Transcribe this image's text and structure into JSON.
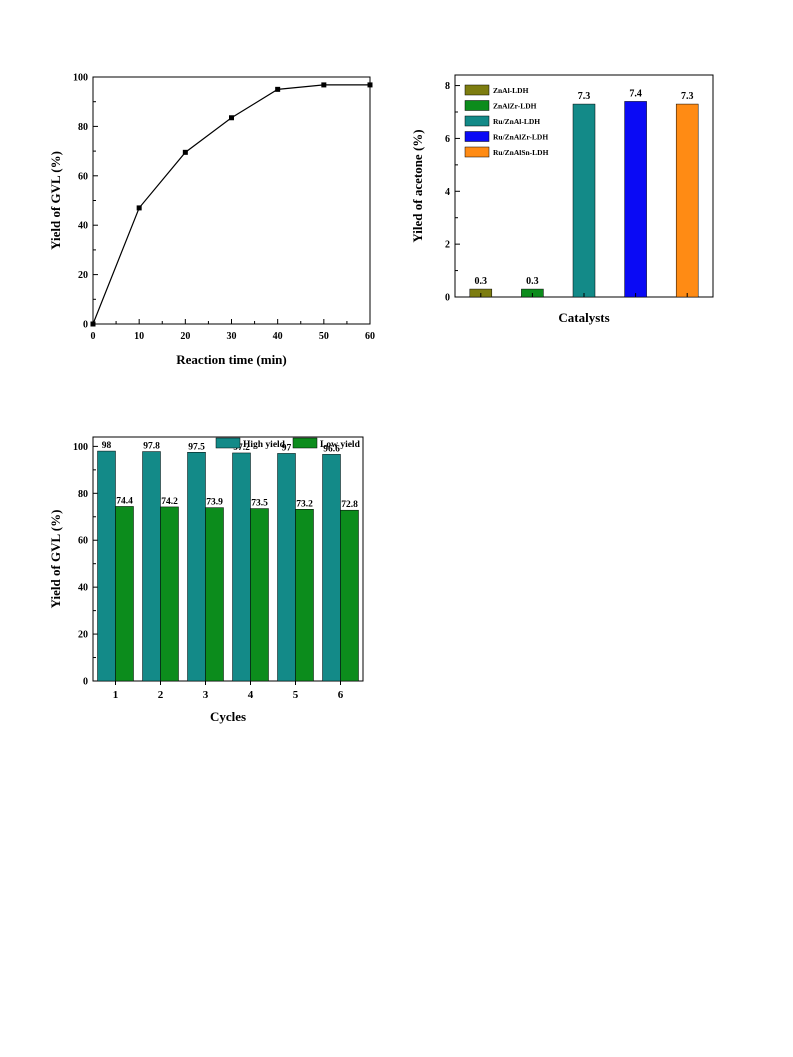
{
  "chart_data": [
    {
      "type": "line",
      "title": "",
      "xlabel": "Reaction time (min)",
      "ylabel": "Yield of GVL (%)",
      "xlim": [
        0,
        60
      ],
      "ylim": [
        0,
        100
      ],
      "xticks": [
        0,
        10,
        20,
        30,
        40,
        50,
        60
      ],
      "yticks": [
        0,
        20,
        40,
        60,
        80,
        100
      ],
      "grid": false,
      "series": [
        {
          "x": [
            0,
            10,
            20,
            30,
            40,
            50,
            60
          ],
          "y": [
            0,
            47,
            69.5,
            83.5,
            95,
            96.8,
            96.8
          ],
          "color": "#000000",
          "marker": "square"
        }
      ]
    },
    {
      "type": "bar",
      "title": "",
      "xlabel": "Catalysts",
      "ylabel": "Yiled of acetone (%)",
      "ylim": [
        0,
        8.4
      ],
      "yticks": [
        0,
        2,
        4,
        6,
        8
      ],
      "grid": false,
      "legend_position": "top-left",
      "categories": [
        "ZnAl-LDH",
        "ZnAlZr-LDH",
        "Ru/ZnAl-LDH",
        "Ru/ZnAlZr-LDH",
        "Ru/ZnAlSn-LDH"
      ],
      "values": [
        0.3,
        0.3,
        7.3,
        7.4,
        7.3
      ],
      "value_labels": [
        "0.3",
        "0.3",
        "7.3",
        "7.4",
        "7.3"
      ],
      "colors": [
        "#7d7d10",
        "#0c8c1c",
        "#138a88",
        "#0a0af5",
        "#ff8b14"
      ]
    },
    {
      "type": "bar",
      "title": "",
      "xlabel": "Cycles",
      "ylabel": "Yield of GVL (%)",
      "ylim": [
        0,
        104
      ],
      "yticks": [
        0,
        20,
        40,
        60,
        80,
        100
      ],
      "grid": false,
      "legend_position": "top-right",
      "categories": [
        "1",
        "2",
        "3",
        "4",
        "5",
        "6"
      ],
      "series": [
        {
          "name": "High yield",
          "values": [
            98,
            97.8,
            97.5,
            97.2,
            97,
            96.6
          ],
          "labels": [
            "98",
            "97.8",
            "97.5",
            "97.2",
            "97",
            "96.6"
          ],
          "color": "#138a88"
        },
        {
          "name": "Low yield",
          "values": [
            74.4,
            74.2,
            73.9,
            73.5,
            73.2,
            72.8
          ],
          "labels": [
            "74.4",
            "74.2",
            "73.9",
            "73.5",
            "73.2",
            "72.8"
          ],
          "color": "#0c8c1c"
        }
      ]
    }
  ]
}
